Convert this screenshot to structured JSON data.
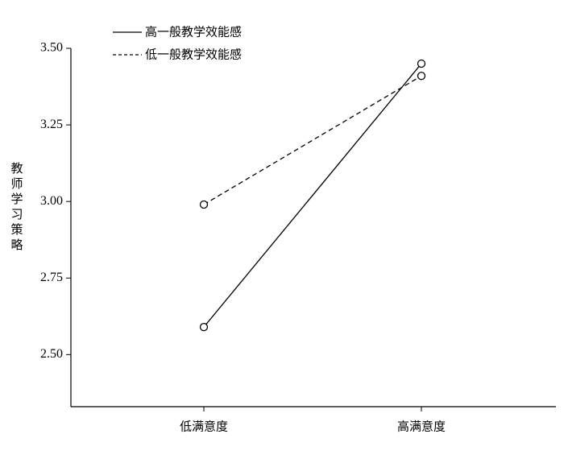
{
  "chart_data": {
    "type": "line",
    "y_label": "教师学习策略",
    "categories": [
      "低满意度",
      "高满意度"
    ],
    "series": [
      {
        "name": "高一般教学效能感",
        "color": "#000000",
        "dashed": false,
        "values": [
          2.59,
          3.45
        ]
      },
      {
        "name": "低一般教学效能感",
        "color": "#000000",
        "dashed": true,
        "values": [
          2.99,
          3.41
        ]
      }
    ],
    "ylim": [
      2.33,
      3.5
    ],
    "yticks": [
      {
        "value": 2.5,
        "label": "2.50"
      },
      {
        "value": 2.75,
        "label": "2.75"
      },
      {
        "value": 3,
        "label": "3.00"
      },
      {
        "value": 3.25,
        "label": "3.25"
      },
      {
        "value": 3.5,
        "label": "3.50"
      }
    ],
    "legend": "top-left",
    "grid": false
  }
}
